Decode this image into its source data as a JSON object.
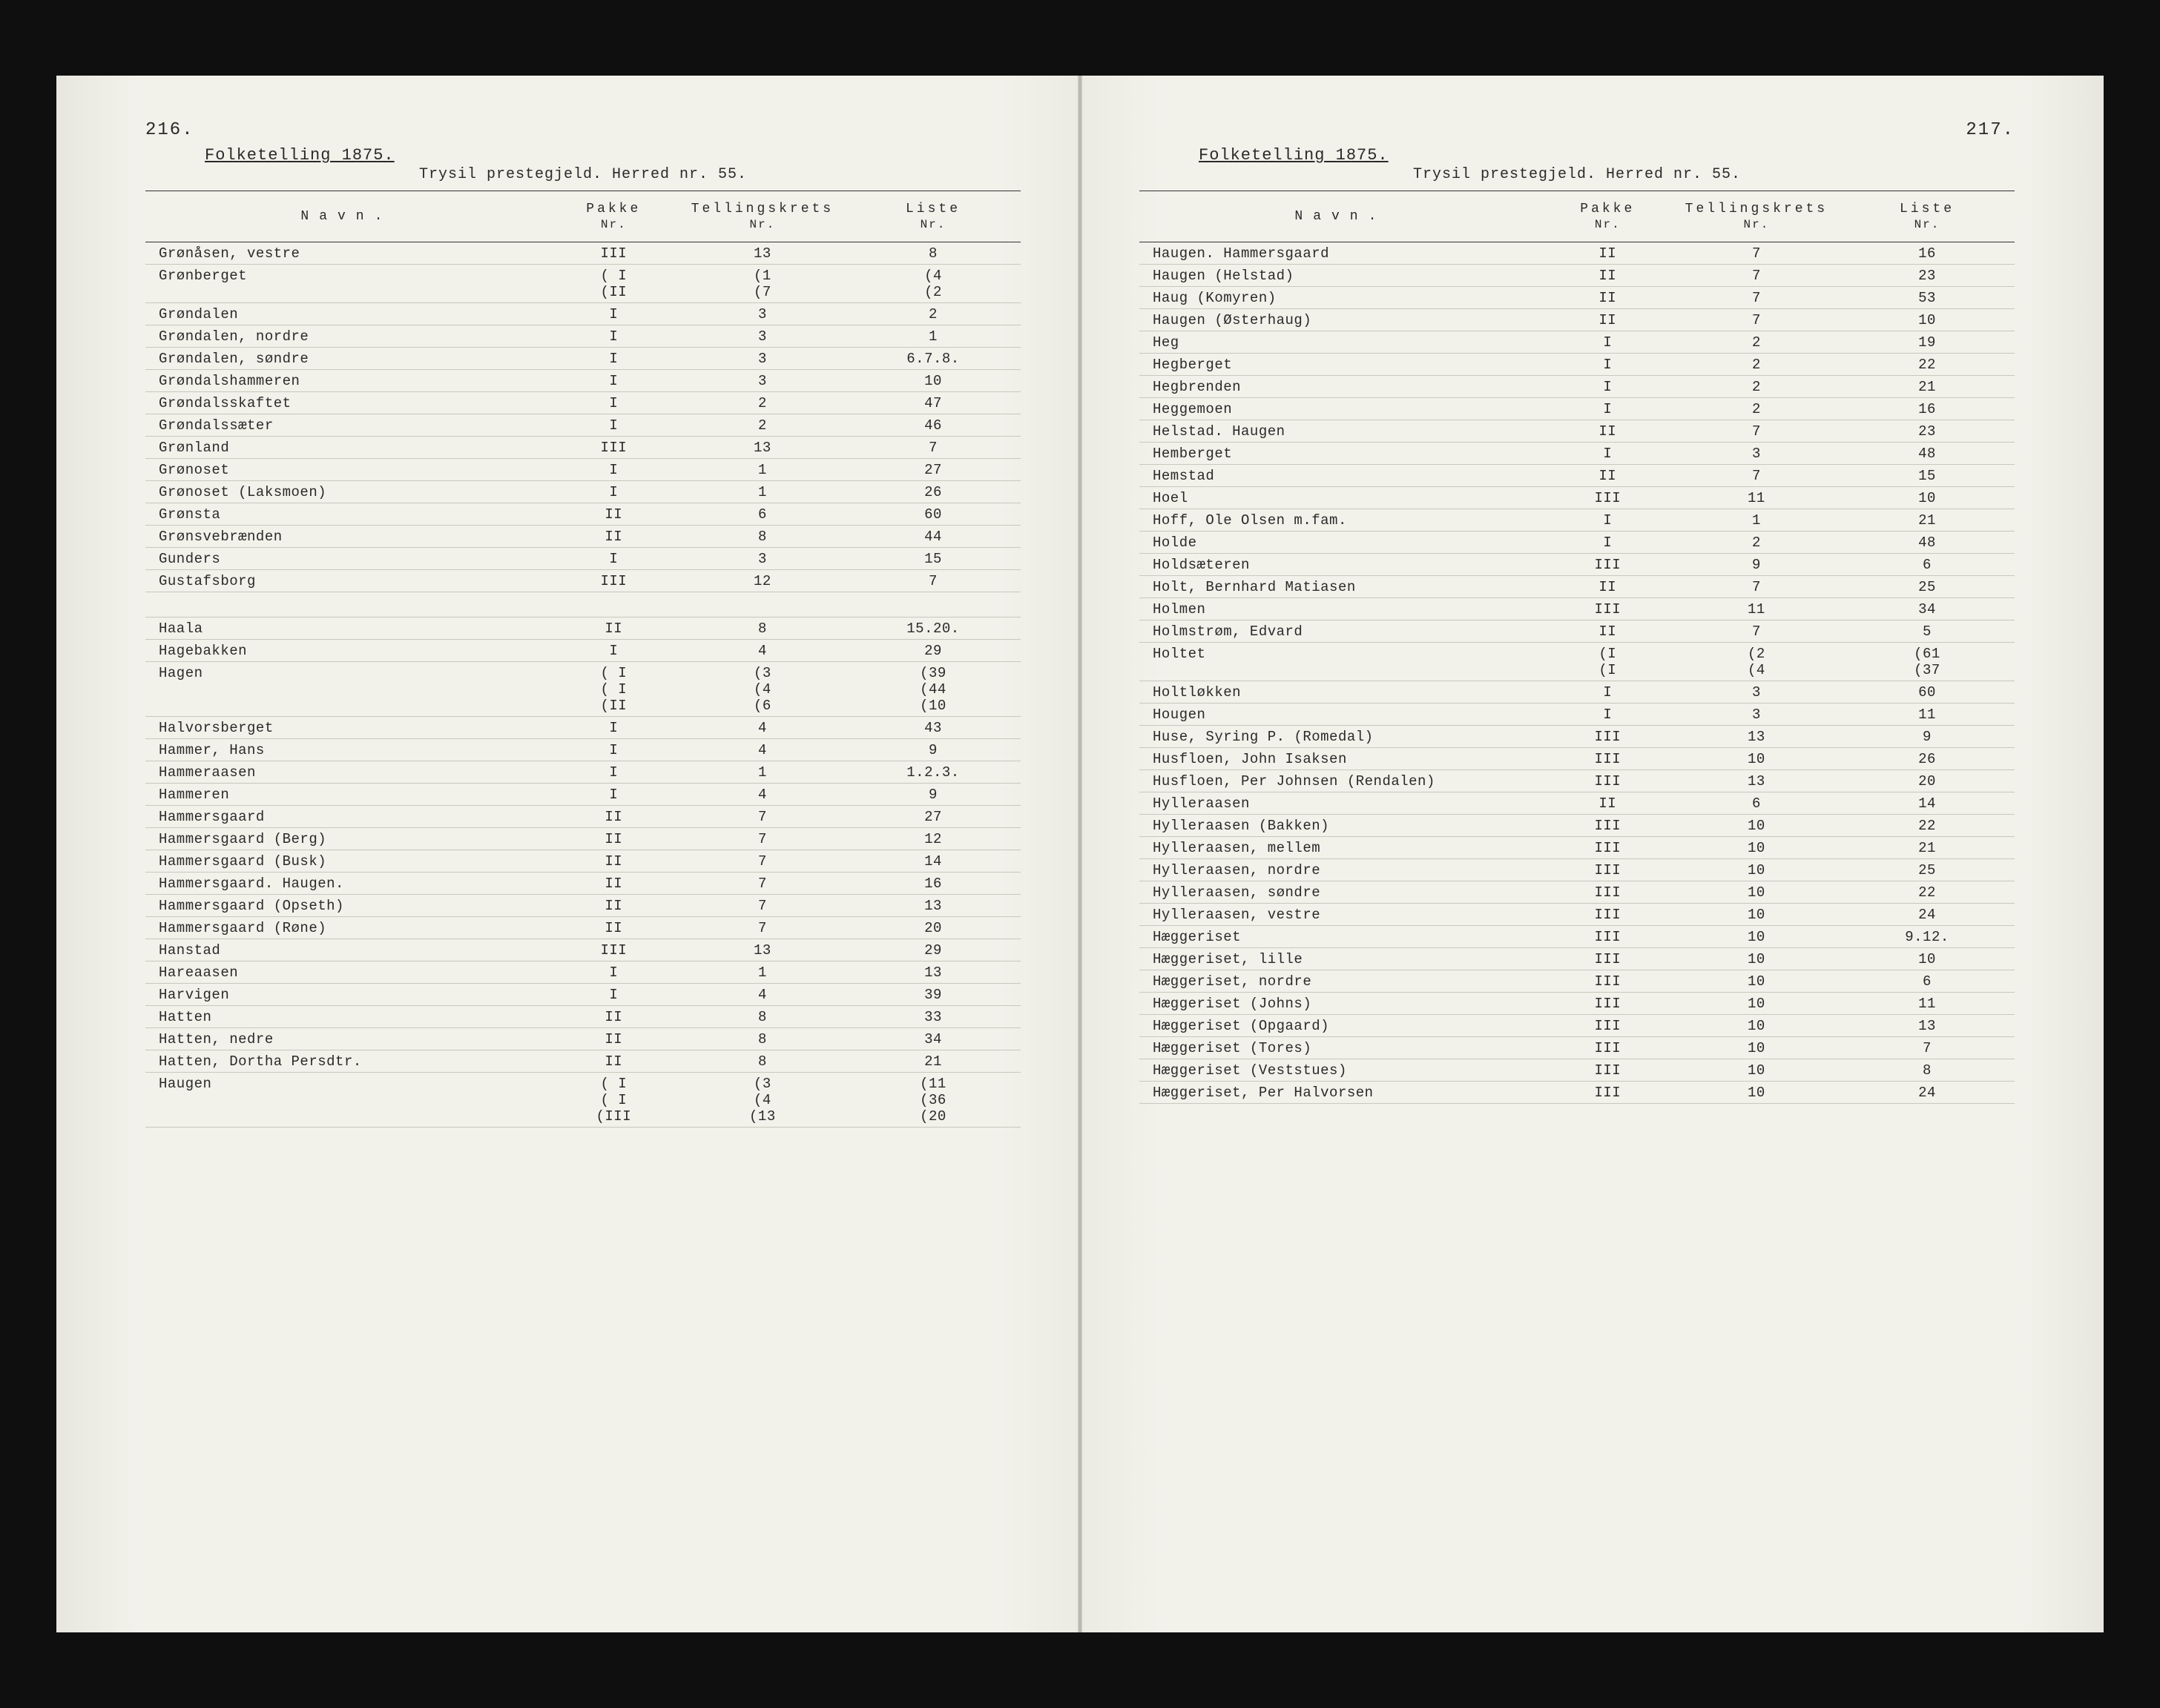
{
  "document": {
    "census_title": "Folketelling 1875.",
    "parish_line": "Trysil prestegjeld. Herred nr. 55.",
    "background_color": "#f2f1ea",
    "text_color": "#2a2a2a",
    "rule_color": "#c9c7bd",
    "font_family": "Courier New"
  },
  "columns": {
    "name": "Navn.",
    "pakke": "Pakke",
    "pakke_sub": "Nr.",
    "krets": "Tellingskrets",
    "krets_sub": "Nr.",
    "liste": "Liste",
    "liste_sub": "Nr."
  },
  "left_page": {
    "page_number": "216.",
    "rows": [
      {
        "n": "Grønåsen, vestre",
        "p": "III",
        "k": "13",
        "l": "8"
      },
      {
        "n": "Grønberget",
        "p": "( I\n(II",
        "k": "(1\n(7",
        "l": "(4\n(2"
      },
      {
        "n": "Grøndalen",
        "p": "I",
        "k": "3",
        "l": "2"
      },
      {
        "n": "Grøndalen, nordre",
        "p": "I",
        "k": "3",
        "l": "1"
      },
      {
        "n": "Grøndalen, søndre",
        "p": "I",
        "k": "3",
        "l": "6.7.8."
      },
      {
        "n": "Grøndalshammeren",
        "p": "I",
        "k": "3",
        "l": "10"
      },
      {
        "n": "Grøndalsskaftet",
        "p": "I",
        "k": "2",
        "l": "47"
      },
      {
        "n": "Grøndalssæter",
        "p": "I",
        "k": "2",
        "l": "46"
      },
      {
        "n": "Grønland",
        "p": "III",
        "k": "13",
        "l": "7"
      },
      {
        "n": "Grønoset",
        "p": "I",
        "k": "1",
        "l": "27"
      },
      {
        "n": "Grønoset (Laksmoen)",
        "p": "I",
        "k": "1",
        "l": "26"
      },
      {
        "n": "Grønsta",
        "p": "II",
        "k": "6",
        "l": "60"
      },
      {
        "n": "Grønsvebrænden",
        "p": "II",
        "k": "8",
        "l": "44"
      },
      {
        "n": "Gunders",
        "p": "I",
        "k": "3",
        "l": "15"
      },
      {
        "n": "Gustafsborg",
        "p": "III",
        "k": "12",
        "l": "7"
      },
      {
        "spacer": true
      },
      {
        "n": "Haala",
        "p": "II",
        "k": "8",
        "l": "15.20."
      },
      {
        "n": "Hagebakken",
        "p": "I",
        "k": "4",
        "l": "29"
      },
      {
        "n": "Hagen",
        "p": "( I\n( I\n(II",
        "k": "(3\n(4\n(6",
        "l": "(39\n(44\n(10"
      },
      {
        "n": "Halvorsberget",
        "p": "I",
        "k": "4",
        "l": "43"
      },
      {
        "n": "Hammer, Hans",
        "p": "I",
        "k": "4",
        "l": "9"
      },
      {
        "n": "Hammeraasen",
        "p": "I",
        "k": "1",
        "l": "1.2.3."
      },
      {
        "n": "Hammeren",
        "p": "I",
        "k": "4",
        "l": "9"
      },
      {
        "n": "Hammersgaard",
        "p": "II",
        "k": "7",
        "l": "27"
      },
      {
        "n": "Hammersgaard (Berg)",
        "p": "II",
        "k": "7",
        "l": "12"
      },
      {
        "n": "Hammersgaard (Busk)",
        "p": "II",
        "k": "7",
        "l": "14"
      },
      {
        "n": "Hammersgaard. Haugen.",
        "p": "II",
        "k": "7",
        "l": "16"
      },
      {
        "n": "Hammersgaard (Opseth)",
        "p": "II",
        "k": "7",
        "l": "13"
      },
      {
        "n": "Hammersgaard (Røne)",
        "p": "II",
        "k": "7",
        "l": "20"
      },
      {
        "n": "Hanstad",
        "p": "III",
        "k": "13",
        "l": "29"
      },
      {
        "n": "Hareaasen",
        "p": "I",
        "k": "1",
        "l": "13"
      },
      {
        "n": "Harvigen",
        "p": "I",
        "k": "4",
        "l": "39"
      },
      {
        "n": "Hatten",
        "p": "II",
        "k": "8",
        "l": "33"
      },
      {
        "n": "Hatten, nedre",
        "p": "II",
        "k": "8",
        "l": "34"
      },
      {
        "n": "Hatten, Dortha Persdtr.",
        "p": "II",
        "k": "8",
        "l": "21"
      },
      {
        "n": "Haugen",
        "p": "( I\n( I\n(III",
        "k": "(3\n(4\n(13",
        "l": "(11\n(36\n(20"
      }
    ]
  },
  "right_page": {
    "page_number": "217.",
    "rows": [
      {
        "n": "Haugen. Hammersgaard",
        "p": "II",
        "k": "7",
        "l": "16"
      },
      {
        "n": "Haugen (Helstad)",
        "p": "II",
        "k": "7",
        "l": "23"
      },
      {
        "n": "Haug (Komyren)",
        "p": "II",
        "k": "7",
        "l": "53"
      },
      {
        "n": "Haugen (Østerhaug)",
        "p": "II",
        "k": "7",
        "l": "10"
      },
      {
        "n": "Heg",
        "p": "I",
        "k": "2",
        "l": "19"
      },
      {
        "n": "Hegberget",
        "p": "I",
        "k": "2",
        "l": "22"
      },
      {
        "n": "Hegbrenden",
        "p": "I",
        "k": "2",
        "l": "21"
      },
      {
        "n": "Heggemoen",
        "p": "I",
        "k": "2",
        "l": "16"
      },
      {
        "n": "Helstad. Haugen",
        "p": "II",
        "k": "7",
        "l": "23"
      },
      {
        "n": "Hemberget",
        "p": "I",
        "k": "3",
        "l": "48"
      },
      {
        "n": "Hemstad",
        "p": "II",
        "k": "7",
        "l": "15"
      },
      {
        "n": "Hoel",
        "p": "III",
        "k": "11",
        "l": "10"
      },
      {
        "n": "Hoff, Ole Olsen m.fam.",
        "p": "I",
        "k": "1",
        "l": "21"
      },
      {
        "n": "Holde",
        "p": "I",
        "k": "2",
        "l": "48"
      },
      {
        "n": "Holdsæteren",
        "p": "III",
        "k": "9",
        "l": "6"
      },
      {
        "n": "Holt, Bernhard Matiasen",
        "p": "II",
        "k": "7",
        "l": "25"
      },
      {
        "n": "Holmen",
        "p": "III",
        "k": "11",
        "l": "34"
      },
      {
        "n": "Holmstrøm, Edvard",
        "p": "II",
        "k": "7",
        "l": "5"
      },
      {
        "n": "Holtet",
        "p": "(I\n(I",
        "k": "(2\n(4",
        "l": "(61\n(37"
      },
      {
        "n": "Holtløkken",
        "p": "I",
        "k": "3",
        "l": "60"
      },
      {
        "n": "Hougen",
        "p": "I",
        "k": "3",
        "l": "11"
      },
      {
        "n": "Huse, Syring P. (Romedal)",
        "p": "III",
        "k": "13",
        "l": "9"
      },
      {
        "n": "Husfloen, John Isaksen",
        "p": "III",
        "k": "10",
        "l": "26"
      },
      {
        "n": "Husfloen, Per Johnsen (Rendalen)",
        "p": "III",
        "k": "13",
        "l": "20"
      },
      {
        "n": "Hylleraasen",
        "p": "II",
        "k": "6",
        "l": "14"
      },
      {
        "n": "Hylleraasen (Bakken)",
        "p": "III",
        "k": "10",
        "l": "22"
      },
      {
        "n": "Hylleraasen, mellem",
        "p": "III",
        "k": "10",
        "l": "21"
      },
      {
        "n": "Hylleraasen, nordre",
        "p": "III",
        "k": "10",
        "l": "25"
      },
      {
        "n": "Hylleraasen, søndre",
        "p": "III",
        "k": "10",
        "l": "22"
      },
      {
        "n": "Hylleraasen, vestre",
        "p": "III",
        "k": "10",
        "l": "24"
      },
      {
        "n": "Hæggeriset",
        "p": "III",
        "k": "10",
        "l": "9.12."
      },
      {
        "n": "Hæggeriset, lille",
        "p": "III",
        "k": "10",
        "l": "10"
      },
      {
        "n": "Hæggeriset, nordre",
        "p": "III",
        "k": "10",
        "l": "6"
      },
      {
        "n": "Hæggeriset (Johns)",
        "p": "III",
        "k": "10",
        "l": "11"
      },
      {
        "n": "Hæggeriset (Opgaard)",
        "p": "III",
        "k": "10",
        "l": "13"
      },
      {
        "n": "Hæggeriset (Tores)",
        "p": "III",
        "k": "10",
        "l": "7"
      },
      {
        "n": "Hæggeriset (Veststues)",
        "p": "III",
        "k": "10",
        "l": "8"
      },
      {
        "n": "Hæggeriset, Per Halvorsen",
        "p": "III",
        "k": "10",
        "l": "24"
      }
    ]
  }
}
